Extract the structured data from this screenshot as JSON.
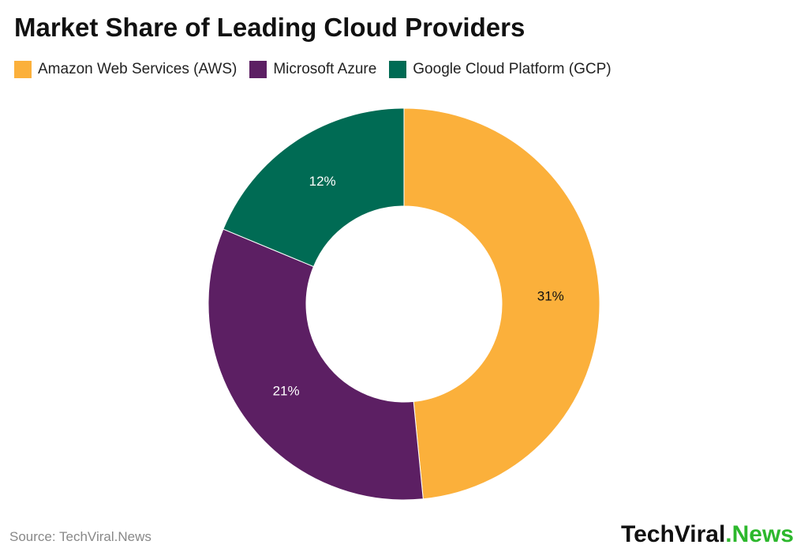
{
  "chart_data": {
    "type": "donut",
    "title": "Market Share of Leading Cloud Providers",
    "categories": [
      "Amazon Web Services (AWS)",
      "Microsoft Azure",
      "Google Cloud Platform (GCP)"
    ],
    "values": [
      31,
      21,
      12
    ],
    "value_labels": [
      "31%",
      "21%",
      "12%"
    ],
    "colors": [
      "#fbb03b",
      "#5c1f63",
      "#006b54"
    ],
    "label_colors": [
      "#111111",
      "#ffffff",
      "#ffffff"
    ],
    "legend": "top-left",
    "source": "Source: TechViral.News",
    "logo_main": "TechViral",
    "logo_accent": ".News"
  }
}
